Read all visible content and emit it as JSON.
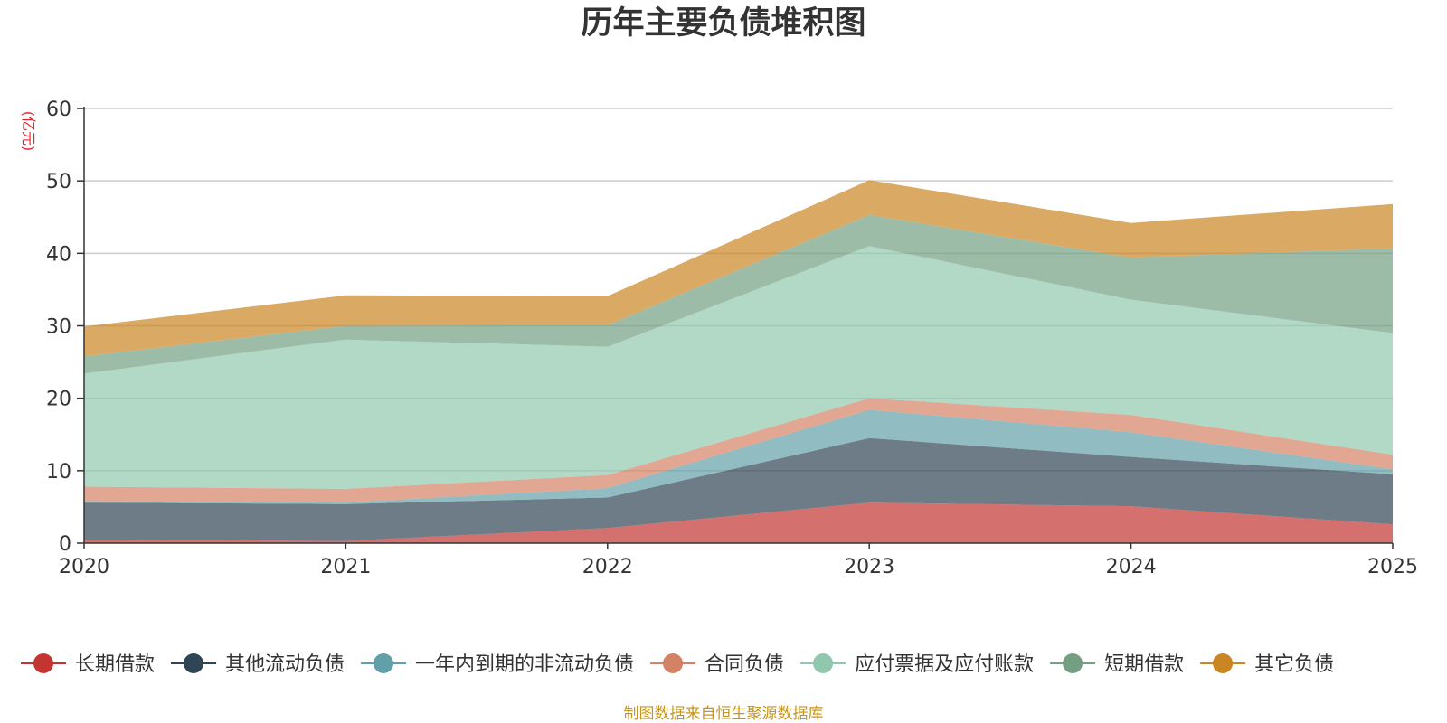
{
  "chart_data": {
    "type": "area",
    "stacked": true,
    "title": "历年主要负债堆积图",
    "ylabel": "(亿元)",
    "ylim": [
      0,
      60
    ],
    "yticks": [
      0,
      10,
      20,
      30,
      40,
      50,
      60
    ],
    "categories": [
      "2020",
      "2021",
      "2022",
      "2023",
      "2024",
      "2025"
    ],
    "series": [
      {
        "name": "长期借款",
        "color": "#c23531",
        "values": [
          0.5,
          0.3,
          2.1,
          5.6,
          5.1,
          2.6
        ]
      },
      {
        "name": "其他流动负债",
        "color": "#2f4554",
        "values": [
          5.1,
          5.1,
          4.2,
          8.9,
          6.8,
          6.9
        ]
      },
      {
        "name": "一年内到期的非流动负债",
        "color": "#61a0a8",
        "values": [
          0.2,
          0.2,
          1.3,
          3.9,
          3.4,
          0.7
        ]
      },
      {
        "name": "合同负债",
        "color": "#d48265",
        "values": [
          2.0,
          1.9,
          1.8,
          1.6,
          2.4,
          2.0
        ]
      },
      {
        "name": "应付票据及应付账款",
        "color": "#91c7ae",
        "values": [
          15.6,
          20.6,
          17.7,
          21.0,
          15.9,
          16.8
        ]
      },
      {
        "name": "短期借款",
        "color": "#749f83",
        "values": [
          2.4,
          1.9,
          3.0,
          4.3,
          5.8,
          11.7
        ]
      },
      {
        "name": "其它负债",
        "color": "#ca8622",
        "values": [
          4.1,
          4.2,
          4.0,
          4.8,
          4.8,
          6.1
        ]
      }
    ],
    "legend_position": "bottom",
    "source_note": "制图数据来自恒生聚源数据库"
  }
}
